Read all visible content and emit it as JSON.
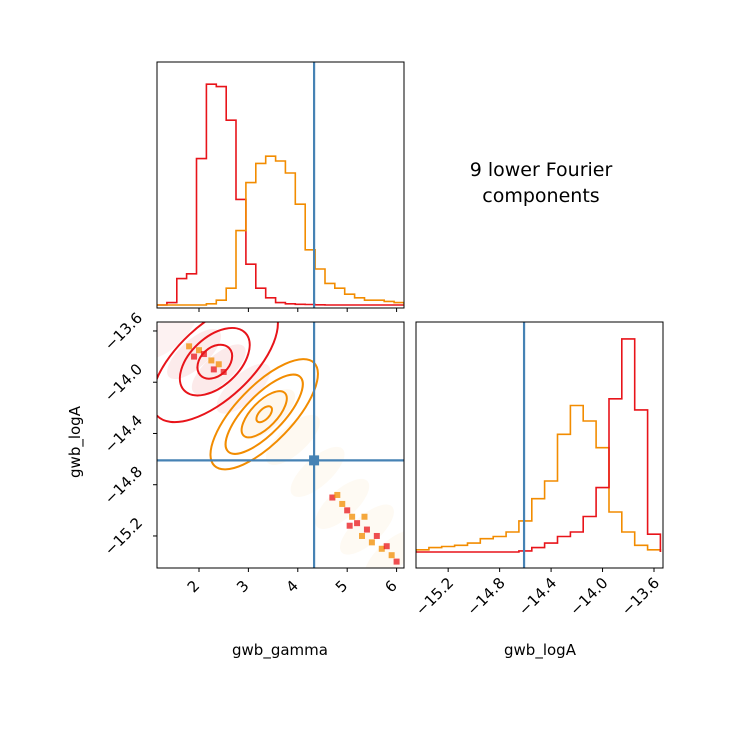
{
  "figure": {
    "annotation_lines": [
      "9 lower Fourier",
      "components"
    ],
    "truth_color": "#4682b4",
    "series_colors": {
      "red": "#e8141a",
      "orange": "#f28c00"
    }
  },
  "chart_data": [
    {
      "type": "histogram",
      "panel": "gwb_gamma-marginal",
      "xlim": [
        1.15,
        6.15
      ],
      "truth": 4.33,
      "bin_edges": [
        1.15,
        1.35,
        1.55,
        1.75,
        1.95,
        2.15,
        2.35,
        2.55,
        2.75,
        2.95,
        3.15,
        3.35,
        3.55,
        3.75,
        3.95,
        4.15,
        4.35,
        4.55,
        4.75,
        4.95,
        5.15,
        5.35,
        5.55,
        5.75,
        5.95,
        6.15
      ],
      "series": [
        {
          "name": "",
          "color": "#e8141a",
          "density": [
            0.0,
            0.01,
            0.11,
            0.13,
            0.61,
            0.92,
            0.91,
            0.77,
            0.44,
            0.17,
            0.07,
            0.03,
            0.01,
            0.005,
            0.003,
            0.002,
            0.001,
            0,
            0,
            0,
            0,
            0,
            0,
            0,
            0
          ]
        },
        {
          "name": "",
          "color": "#f28c00",
          "density": [
            0,
            0,
            0,
            0,
            0,
            0.005,
            0.02,
            0.07,
            0.31,
            0.51,
            0.59,
            0.62,
            0.6,
            0.55,
            0.42,
            0.23,
            0.15,
            0.09,
            0.07,
            0.045,
            0.03,
            0.02,
            0.02,
            0.015,
            0.01
          ]
        }
      ]
    },
    {
      "type": "scatter",
      "panel": "gwb_gamma-vs-gwb_logA-2d",
      "xlabel": "gwb_gamma",
      "ylabel": "gwb_logA",
      "xlim": [
        1.15,
        6.15
      ],
      "ylim": [
        -15.45,
        -13.53
      ],
      "xticks": [
        "2",
        "3",
        "4",
        "5",
        "6"
      ],
      "yticks": [
        "−13.6",
        "−14.0",
        "−14.4",
        "−14.8",
        "−15.2"
      ],
      "truth": {
        "x": 4.33,
        "y": -14.61
      },
      "contours": [
        {
          "color": "#e8141a",
          "center": [
            2.32,
            -13.84
          ],
          "angle_deg": -43,
          "rx": [
            0.4,
            0.85,
            1.6
          ],
          "ry": [
            0.11,
            0.19,
            0.29
          ]
        },
        {
          "color": "#f28c00",
          "center": [
            3.32,
            -14.25
          ],
          "angle_deg": -46,
          "rx": [
            0.2,
            0.6,
            1.05,
            1.45
          ],
          "ry": [
            0.04,
            0.1,
            0.15,
            0.22
          ]
        }
      ],
      "hot_points": [
        [
          1.9,
          -13.8
        ],
        [
          2.0,
          -13.75
        ],
        [
          2.1,
          -13.78
        ],
        [
          2.25,
          -13.83
        ],
        [
          2.3,
          -13.9
        ],
        [
          2.4,
          -13.86
        ],
        [
          2.5,
          -13.92
        ],
        [
          1.8,
          -13.72
        ],
        [
          4.7,
          -14.9
        ],
        [
          4.9,
          -14.95
        ],
        [
          5.0,
          -15.0
        ],
        [
          5.1,
          -15.05
        ],
        [
          5.2,
          -15.1
        ],
        [
          5.3,
          -15.2
        ],
        [
          5.4,
          -15.15
        ],
        [
          5.5,
          -15.25
        ],
        [
          5.6,
          -15.2
        ],
        [
          5.7,
          -15.3
        ],
        [
          5.8,
          -15.28
        ],
        [
          5.9,
          -15.35
        ],
        [
          6.0,
          -15.4
        ],
        [
          4.8,
          -14.88
        ],
        [
          5.05,
          -15.12
        ],
        [
          5.35,
          -15.05
        ]
      ]
    },
    {
      "type": "histogram",
      "panel": "gwb_logA-marginal",
      "xlabel": "gwb_logA",
      "xlim": [
        -15.45,
        -13.53
      ],
      "xticks": [
        "−15.2",
        "−14.8",
        "−14.4",
        "−14.0",
        "−13.6"
      ],
      "truth": -14.61,
      "bin_edges": [
        -15.45,
        -15.35,
        -15.25,
        -15.15,
        -15.05,
        -14.95,
        -14.85,
        -14.75,
        -14.65,
        -14.55,
        -14.45,
        -14.35,
        -14.25,
        -14.15,
        -14.05,
        -13.95,
        -13.85,
        -13.75,
        -13.65,
        -13.55
      ],
      "series": [
        {
          "name": "",
          "color": "#f28c00",
          "density": [
            0.01,
            0.02,
            0.025,
            0.03,
            0.04,
            0.06,
            0.07,
            0.09,
            0.14,
            0.24,
            0.32,
            0.53,
            0.66,
            0.59,
            0.47,
            0.18,
            0.09,
            0.03,
            0.01
          ]
        },
        {
          "name": "",
          "color": "#e8141a",
          "density": [
            0,
            0,
            0,
            0,
            0,
            0,
            0,
            0,
            0.005,
            0.02,
            0.04,
            0.07,
            0.09,
            0.16,
            0.29,
            0.69,
            0.96,
            0.64,
            0.08
          ]
        }
      ]
    }
  ]
}
